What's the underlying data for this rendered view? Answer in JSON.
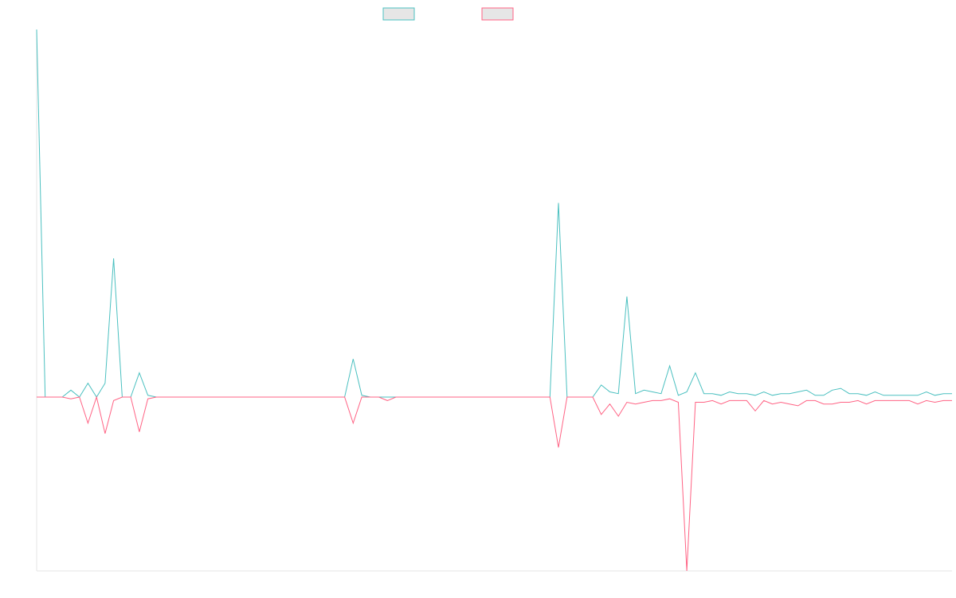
{
  "chart_data": {
    "type": "line",
    "title": "",
    "xlabel": "",
    "ylabel": "",
    "grid": false,
    "legend": "top-center",
    "ylim": [
      -100,
      100
    ],
    "series": [
      {
        "color": "#4bc0c0",
        "fill": "#e6e6e6",
        "values": [
          212,
          0,
          0,
          0,
          4,
          0,
          8,
          0,
          8,
          80,
          0,
          0,
          14,
          1,
          0,
          0,
          0,
          0,
          0,
          0,
          0,
          0,
          0,
          0,
          0,
          0,
          0,
          0,
          0,
          0,
          0,
          0,
          0,
          0,
          0,
          0,
          0,
          22,
          1,
          0,
          0,
          0,
          0,
          0,
          0,
          0,
          0,
          0,
          0,
          0,
          0,
          0,
          0,
          0,
          0,
          0,
          0,
          0,
          0,
          0,
          0,
          112,
          0,
          0,
          0,
          0,
          7,
          3,
          2,
          58,
          2,
          4,
          3,
          2,
          18,
          1,
          3,
          14,
          2,
          2,
          1,
          3,
          2,
          2,
          1,
          3,
          1,
          2,
          2,
          3,
          4,
          1,
          1,
          4,
          5,
          2,
          2,
          1,
          3,
          1,
          1,
          1,
          1,
          1,
          3,
          1,
          2,
          2
        ]
      },
      {
        "color": "#ff6384",
        "fill": "#e6e6e6",
        "values": [
          0,
          0,
          0,
          0,
          -1,
          0,
          -15,
          0,
          -21,
          -2,
          0,
          0,
          -20,
          -1,
          0,
          0,
          0,
          0,
          0,
          0,
          0,
          0,
          0,
          0,
          0,
          0,
          0,
          0,
          0,
          0,
          0,
          0,
          0,
          0,
          0,
          0,
          0,
          -15,
          0,
          0,
          0,
          -2,
          0,
          0,
          0,
          0,
          0,
          0,
          0,
          0,
          0,
          0,
          0,
          0,
          0,
          0,
          0,
          0,
          0,
          0,
          0,
          -29,
          0,
          0,
          0,
          0,
          -10,
          -4,
          -11,
          -3,
          -4,
          -3,
          -2,
          -2,
          -1,
          -3,
          -100,
          -3,
          -3,
          -2,
          -4,
          -2,
          -2,
          -2,
          -8,
          -2,
          -4,
          -3,
          -4,
          -5,
          -2,
          -2,
          -4,
          -4,
          -3,
          -3,
          -2,
          -4,
          -2,
          -2,
          -2,
          -2,
          -2,
          -4,
          -2,
          -3,
          -2,
          -2
        ]
      }
    ]
  }
}
